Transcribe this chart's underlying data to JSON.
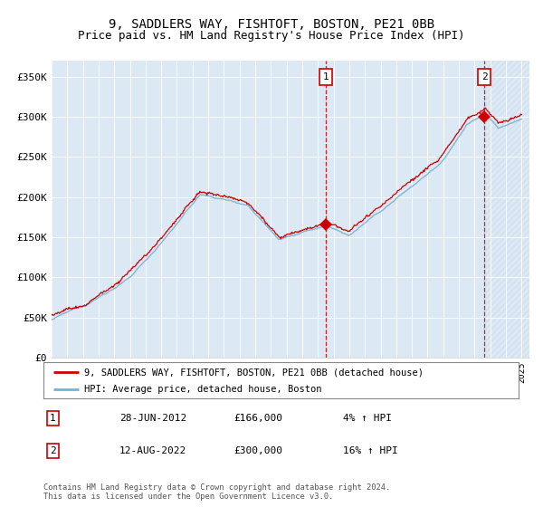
{
  "title": "9, SADDLERS WAY, FISHTOFT, BOSTON, PE21 0BB",
  "subtitle": "Price paid vs. HM Land Registry's House Price Index (HPI)",
  "ylim": [
    0,
    370000
  ],
  "yticks": [
    0,
    50000,
    100000,
    150000,
    200000,
    250000,
    300000,
    350000
  ],
  "ytick_labels": [
    "£0",
    "£50K",
    "£100K",
    "£150K",
    "£200K",
    "£250K",
    "£300K",
    "£350K"
  ],
  "plot_bg_color": "#dce9f5",
  "hpi_color": "#7bafd4",
  "price_color": "#cc0000",
  "marker_color": "#cc0000",
  "sale1_date": 2012.49,
  "sale1_price": 166000,
  "sale1_label": "1",
  "sale2_date": 2022.62,
  "sale2_price": 300000,
  "sale2_label": "2",
  "legend1": "9, SADDLERS WAY, FISHTOFT, BOSTON, PE21 0BB (detached house)",
  "legend2": "HPI: Average price, detached house, Boston",
  "table_row1": [
    "1",
    "28-JUN-2012",
    "£166,000",
    "4% ↑ HPI"
  ],
  "table_row2": [
    "2",
    "12-AUG-2022",
    "£300,000",
    "16% ↑ HPI"
  ],
  "footer": "Contains HM Land Registry data © Crown copyright and database right 2024.\nThis data is licensed under the Open Government Licence v3.0.",
  "title_fontsize": 10,
  "subtitle_fontsize": 9
}
